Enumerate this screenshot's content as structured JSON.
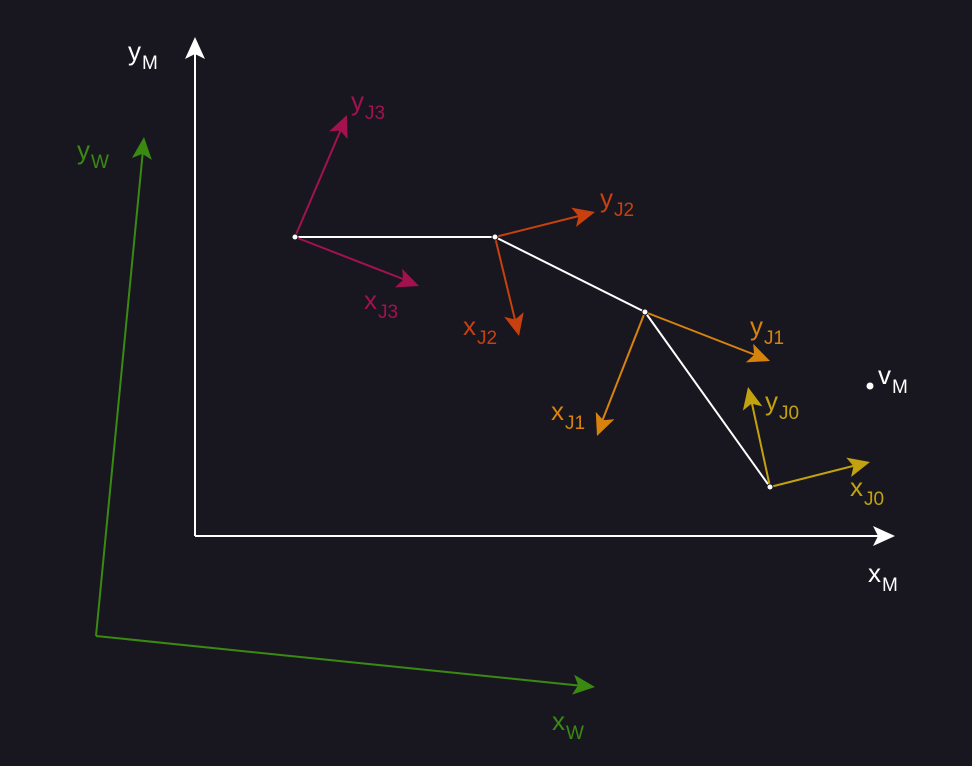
{
  "frames": {
    "world": {
      "x_label": "x",
      "x_sub": "W",
      "y_label": "y",
      "y_sub": "W",
      "color": "#3a8a12"
    },
    "model": {
      "x_label": "x",
      "x_sub": "M",
      "y_label": "y",
      "y_sub": "M",
      "color": "#ffffff"
    },
    "j0": {
      "x_label": "x",
      "x_sub": "J0",
      "y_label": "y",
      "y_sub": "J0",
      "color": "#c2a20e"
    },
    "j1": {
      "x_label": "x",
      "x_sub": "J1",
      "y_label": "y",
      "y_sub": "J1",
      "color": "#d8820e"
    },
    "j2": {
      "x_label": "x",
      "x_sub": "J2",
      "y_label": "y",
      "y_sub": "J2",
      "color": "#c9400e"
    },
    "j3": {
      "x_label": "x",
      "x_sub": "J3",
      "y_label": "y",
      "y_sub": "J3",
      "color": "#a3124f"
    }
  },
  "point": {
    "label": "v",
    "sub": "M",
    "color": "#ffffff"
  },
  "link_color": "#ffffff",
  "background": "#18171f"
}
